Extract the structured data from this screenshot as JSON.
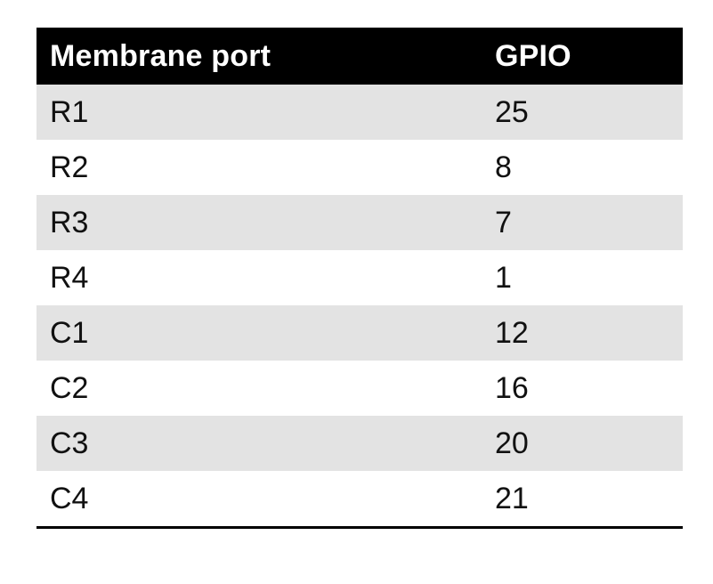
{
  "table": {
    "headers": [
      "Membrane port",
      "GPIO"
    ],
    "rows": [
      [
        "R1",
        "25"
      ],
      [
        "R2",
        "8"
      ],
      [
        "R3",
        "7"
      ],
      [
        "R4",
        "1"
      ],
      [
        "C1",
        "12"
      ],
      [
        "C2",
        "16"
      ],
      [
        "C3",
        "20"
      ],
      [
        "C4",
        "21"
      ]
    ]
  },
  "colors": {
    "header_bg": "#000000",
    "header_text": "#ffffff",
    "stripe": "#e3e3e3",
    "row_bg": "#ffffff"
  }
}
